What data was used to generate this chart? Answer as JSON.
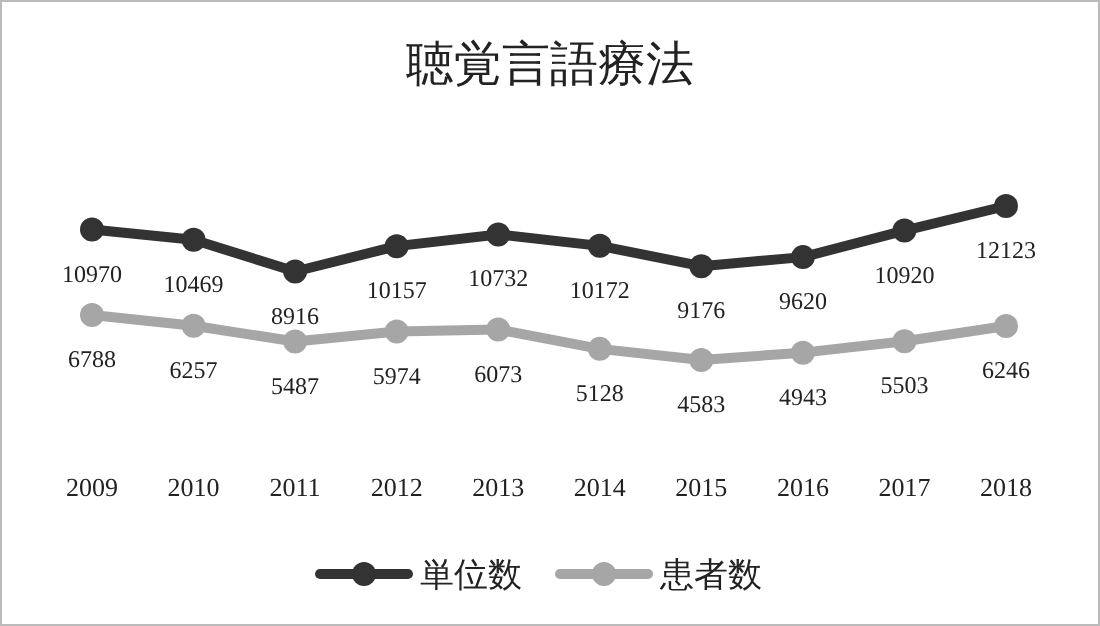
{
  "chart_data": {
    "type": "line",
    "title": "聴覚言語療法",
    "categories": [
      "2009",
      "2010",
      "2011",
      "2012",
      "2013",
      "2014",
      "2015",
      "2016",
      "2017",
      "2018"
    ],
    "series": [
      {
        "name": "単位数",
        "color": "#333333",
        "values": [
          10970,
          10469,
          8916,
          10157,
          10732,
          10172,
          9176,
          9620,
          10920,
          12123
        ]
      },
      {
        "name": "患者数",
        "color": "#a6a6a6",
        "values": [
          6788,
          6257,
          5487,
          5974,
          6073,
          5128,
          4583,
          4943,
          5503,
          6246
        ]
      }
    ],
    "data_labels": true,
    "legend": "bottom",
    "marker": "circle",
    "line_style": "solid",
    "grid": false
  }
}
